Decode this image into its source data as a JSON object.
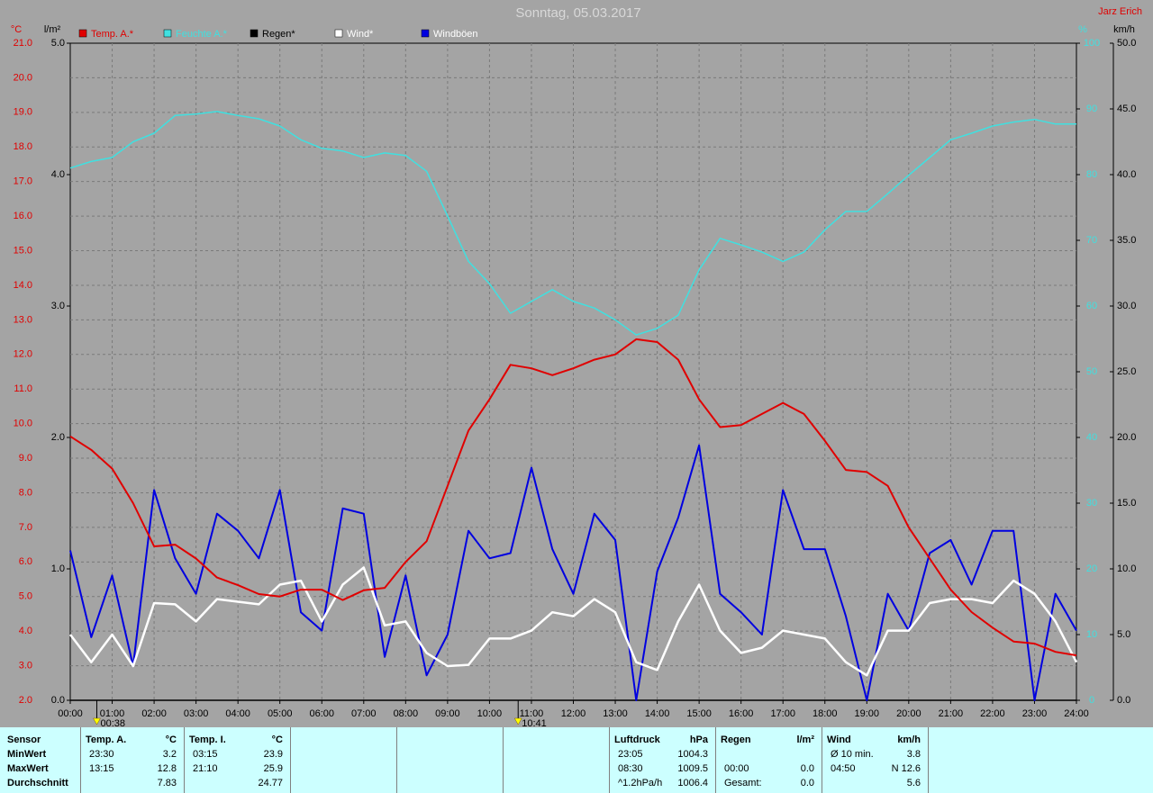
{
  "chart_data": {
    "type": "line",
    "title": "Sonntag, 05.03.2017",
    "author": "Jarz Erich",
    "y_unit": "°C",
    "y2_unit": "l/m²",
    "y3_unit": "%",
    "y4_unit": "km/h",
    "xlim": [
      0,
      24
    ],
    "xticks": [
      {
        "value": 0,
        "label": "00:00"
      },
      {
        "value": 1,
        "label": "01:00"
      },
      {
        "value": 2,
        "label": "02:00"
      },
      {
        "value": 3,
        "label": "03:00"
      },
      {
        "value": 4,
        "label": "04:00"
      },
      {
        "value": 5,
        "label": "05:00"
      },
      {
        "value": 6,
        "label": "06:00"
      },
      {
        "value": 7,
        "label": "07:00"
      },
      {
        "value": 8,
        "label": "08:00"
      },
      {
        "value": 9,
        "label": "09:00"
      },
      {
        "value": 10,
        "label": "10:00"
      },
      {
        "value": 11,
        "label": "11:00"
      },
      {
        "value": 12,
        "label": "12:00"
      },
      {
        "value": 13,
        "label": "13:00"
      },
      {
        "value": 14,
        "label": "14:00"
      },
      {
        "value": 15,
        "label": "15:00"
      },
      {
        "value": 16,
        "label": "16:00"
      },
      {
        "value": 17,
        "label": "17:00"
      },
      {
        "value": 18,
        "label": "18:00"
      },
      {
        "value": 19,
        "label": "19:00"
      },
      {
        "value": 20,
        "label": "20:00"
      },
      {
        "value": 21,
        "label": "21:00"
      },
      {
        "value": 22,
        "label": "22:00"
      },
      {
        "value": 23,
        "label": "23:00"
      },
      {
        "value": 24,
        "label": "24:00"
      }
    ],
    "ylim": [
      2,
      21
    ],
    "yticks": [
      {
        "value": 2,
        "label": "2.0"
      },
      {
        "value": 3,
        "label": "3.0"
      },
      {
        "value": 4,
        "label": "4.0"
      },
      {
        "value": 5,
        "label": "5.0"
      },
      {
        "value": 6,
        "label": "6.0"
      },
      {
        "value": 7,
        "label": "7.0"
      },
      {
        "value": 8,
        "label": "8.0"
      },
      {
        "value": 9,
        "label": "9.0"
      },
      {
        "value": 10,
        "label": "10.0"
      },
      {
        "value": 11,
        "label": "11.0"
      },
      {
        "value": 12,
        "label": "12.0"
      },
      {
        "value": 13,
        "label": "13.0"
      },
      {
        "value": 14,
        "label": "14.0"
      },
      {
        "value": 15,
        "label": "15.0"
      },
      {
        "value": 16,
        "label": "16.0"
      },
      {
        "value": 17,
        "label": "17.0"
      },
      {
        "value": 18,
        "label": "18.0"
      },
      {
        "value": 19,
        "label": "19.0"
      },
      {
        "value": 20,
        "label": "20.0"
      },
      {
        "value": 21,
        "label": "21.0"
      }
    ],
    "y2lim": [
      0,
      5
    ],
    "y2ticks": [
      {
        "value": 0,
        "label": "0.0"
      },
      {
        "value": 1,
        "label": "1.0"
      },
      {
        "value": 2,
        "label": "2.0"
      },
      {
        "value": 3,
        "label": "3.0"
      },
      {
        "value": 4,
        "label": "4.0"
      },
      {
        "value": 5,
        "label": "5.0"
      }
    ],
    "y3lim": [
      0,
      100
    ],
    "y3ticks": [
      0,
      10,
      20,
      30,
      40,
      50,
      60,
      70,
      80,
      90,
      100
    ],
    "y4lim": [
      0,
      50
    ],
    "y4ticks": [
      {
        "value": 0,
        "label": "0.0"
      },
      {
        "value": 5,
        "label": "5.0"
      },
      {
        "value": 10,
        "label": "10.0"
      },
      {
        "value": 15,
        "label": "15.0"
      },
      {
        "value": 20,
        "label": "20.0"
      },
      {
        "value": 25,
        "label": "25.0"
      },
      {
        "value": 30,
        "label": "30.0"
      },
      {
        "value": 35,
        "label": "35.0"
      },
      {
        "value": 40,
        "label": "40.0"
      },
      {
        "value": 45,
        "label": "45.0"
      },
      {
        "value": 50,
        "label": "50.0"
      }
    ],
    "grid": true,
    "x": [
      0,
      0.5,
      1,
      1.5,
      2,
      2.5,
      3,
      3.5,
      4,
      4.5,
      5,
      5.5,
      6,
      6.5,
      7,
      7.5,
      8,
      8.5,
      9,
      9.5,
      10,
      10.5,
      11,
      11.5,
      12,
      12.5,
      13,
      13.5,
      14,
      14.5,
      15,
      15.5,
      16,
      16.5,
      17,
      17.5,
      18,
      18.5,
      19,
      19.5,
      20,
      20.5,
      21,
      21.5,
      22,
      22.5,
      23,
      23.5,
      24
    ],
    "series": [
      {
        "name": "Feuchte A.*",
        "color": "#40e0e0",
        "axis": "y3",
        "values": [
          81,
          82,
          82.6,
          85,
          86.3,
          89,
          89.2,
          89.6,
          89,
          88.5,
          87.4,
          85.3,
          84,
          83.6,
          82.6,
          83.3,
          82.9,
          80.5,
          73.7,
          66.8,
          63.4,
          58.9,
          60.7,
          62.5,
          60.7,
          59.7,
          57.9,
          55.6,
          56.6,
          58.6,
          65.5,
          70.3,
          69.3,
          68.2,
          66.8,
          68.2,
          71.6,
          74.4,
          74.4,
          77.1,
          79.9,
          82.6,
          85.3,
          86.3,
          87.4,
          88,
          88.4,
          87.7,
          87.7
        ]
      },
      {
        "name": "Regen*",
        "color": "#000000",
        "axis": "y2",
        "values": [
          0,
          0,
          0,
          0,
          0,
          0,
          0,
          0,
          0,
          0,
          0,
          0,
          0,
          0,
          0,
          0,
          0,
          0,
          0,
          0,
          0,
          0,
          0,
          0,
          0,
          0,
          0,
          0,
          0,
          0,
          0,
          0,
          0,
          0,
          0,
          0,
          0,
          0,
          0,
          0,
          0,
          0,
          0,
          0,
          0,
          0,
          0,
          0,
          0
        ]
      },
      {
        "name": "Windböen",
        "color": "#0000e0",
        "axis": "y4",
        "values": [
          11.4,
          4.8,
          9.5,
          2.6,
          16,
          10.8,
          8.1,
          14.2,
          12.9,
          10.8,
          16,
          6.7,
          5.3,
          14.6,
          14.2,
          3.3,
          9.5,
          1.9,
          5,
          12.9,
          10.8,
          11.2,
          17.7,
          11.5,
          8.1,
          14.2,
          12.2,
          0,
          9.8,
          13.9,
          19.4,
          8.1,
          6.7,
          5,
          16,
          11.5,
          11.5,
          6.4,
          0,
          8.1,
          5.3,
          11.2,
          12.2,
          8.8,
          12.9,
          12.9,
          0,
          8.1,
          5.3
        ]
      },
      {
        "name": "Wind*",
        "color": "#ffffff",
        "axis": "y4",
        "values": [
          5,
          2.9,
          5,
          2.6,
          7.4,
          7.3,
          6,
          7.7,
          7.5,
          7.3,
          8.8,
          9.1,
          6,
          8.8,
          10.1,
          5.7,
          6,
          3.6,
          2.6,
          2.7,
          4.7,
          4.7,
          5.3,
          6.7,
          6.4,
          7.7,
          6.7,
          2.9,
          2.3,
          6,
          8.8,
          5.3,
          3.6,
          4,
          5.3,
          5,
          4.7,
          2.9,
          1.9,
          5.3,
          5.3,
          7.4,
          7.7,
          7.7,
          7.4,
          9.1,
          8.1,
          6,
          2.9
        ]
      },
      {
        "name": "Temp. A.*",
        "color": "#e00000",
        "axis": "y",
        "values": [
          9.63,
          9.24,
          8.7,
          7.7,
          6.45,
          6.5,
          6.1,
          5.55,
          5.33,
          5.07,
          5,
          5.2,
          5.2,
          4.9,
          5.18,
          5.25,
          6,
          6.6,
          8.2,
          9.8,
          10.7,
          11.7,
          11.6,
          11.4,
          11.6,
          11.85,
          12,
          12.44,
          12.36,
          11.85,
          10.7,
          9.9,
          9.96,
          10.28,
          10.6,
          10.28,
          9.5,
          8.66,
          8.6,
          8.2,
          7,
          6.1,
          5.2,
          4.55,
          4.1,
          3.7,
          3.64,
          3.4,
          3.3
        ]
      }
    ],
    "legend_order": [
      4,
      0,
      1,
      3,
      2
    ],
    "annotations": [
      {
        "x": 0.6333,
        "label": "00:38"
      },
      {
        "x": 10.6833,
        "label": "10:41"
      }
    ]
  },
  "stats": {
    "row_labels": [
      "Sensor",
      "MinWert",
      "MaxWert",
      "Durchschnitt"
    ],
    "panels": [
      {
        "title": "Temp. A.",
        "unit": "°C",
        "rows": [
          {
            "time": "23:30",
            "value": "3.2"
          },
          {
            "time": "13:15",
            "value": "12.8"
          },
          {
            "value": "7.83"
          }
        ]
      },
      {
        "title": "Temp. I.",
        "unit": "°C",
        "rows": [
          {
            "time": "03:15",
            "value": "23.9"
          },
          {
            "time": "21:10",
            "value": "25.9"
          },
          {
            "value": "24.77"
          }
        ]
      },
      {},
      {},
      {},
      {
        "title": "Luftdruck",
        "unit": "hPa",
        "rows": [
          {
            "time": "23:05",
            "value": "1004.3"
          },
          {
            "time": "08:30",
            "value": "1009.5"
          },
          {
            "time": "^1.2hPa/h",
            "value": "1006.4"
          }
        ]
      },
      {
        "title": "Regen",
        "unit": "l/m²",
        "rows": [
          {},
          {
            "time": "00:00",
            "value": "0.0"
          },
          {
            "time": "Gesamt:",
            "value": "0.0"
          }
        ]
      },
      {
        "title": "Wind",
        "unit": "km/h",
        "rows": [
          {
            "time": "Ø 10 min.",
            "value": "3.8"
          },
          {
            "time": "04:50",
            "value": "N 12.6"
          },
          {
            "value": "5.6"
          }
        ]
      }
    ]
  }
}
